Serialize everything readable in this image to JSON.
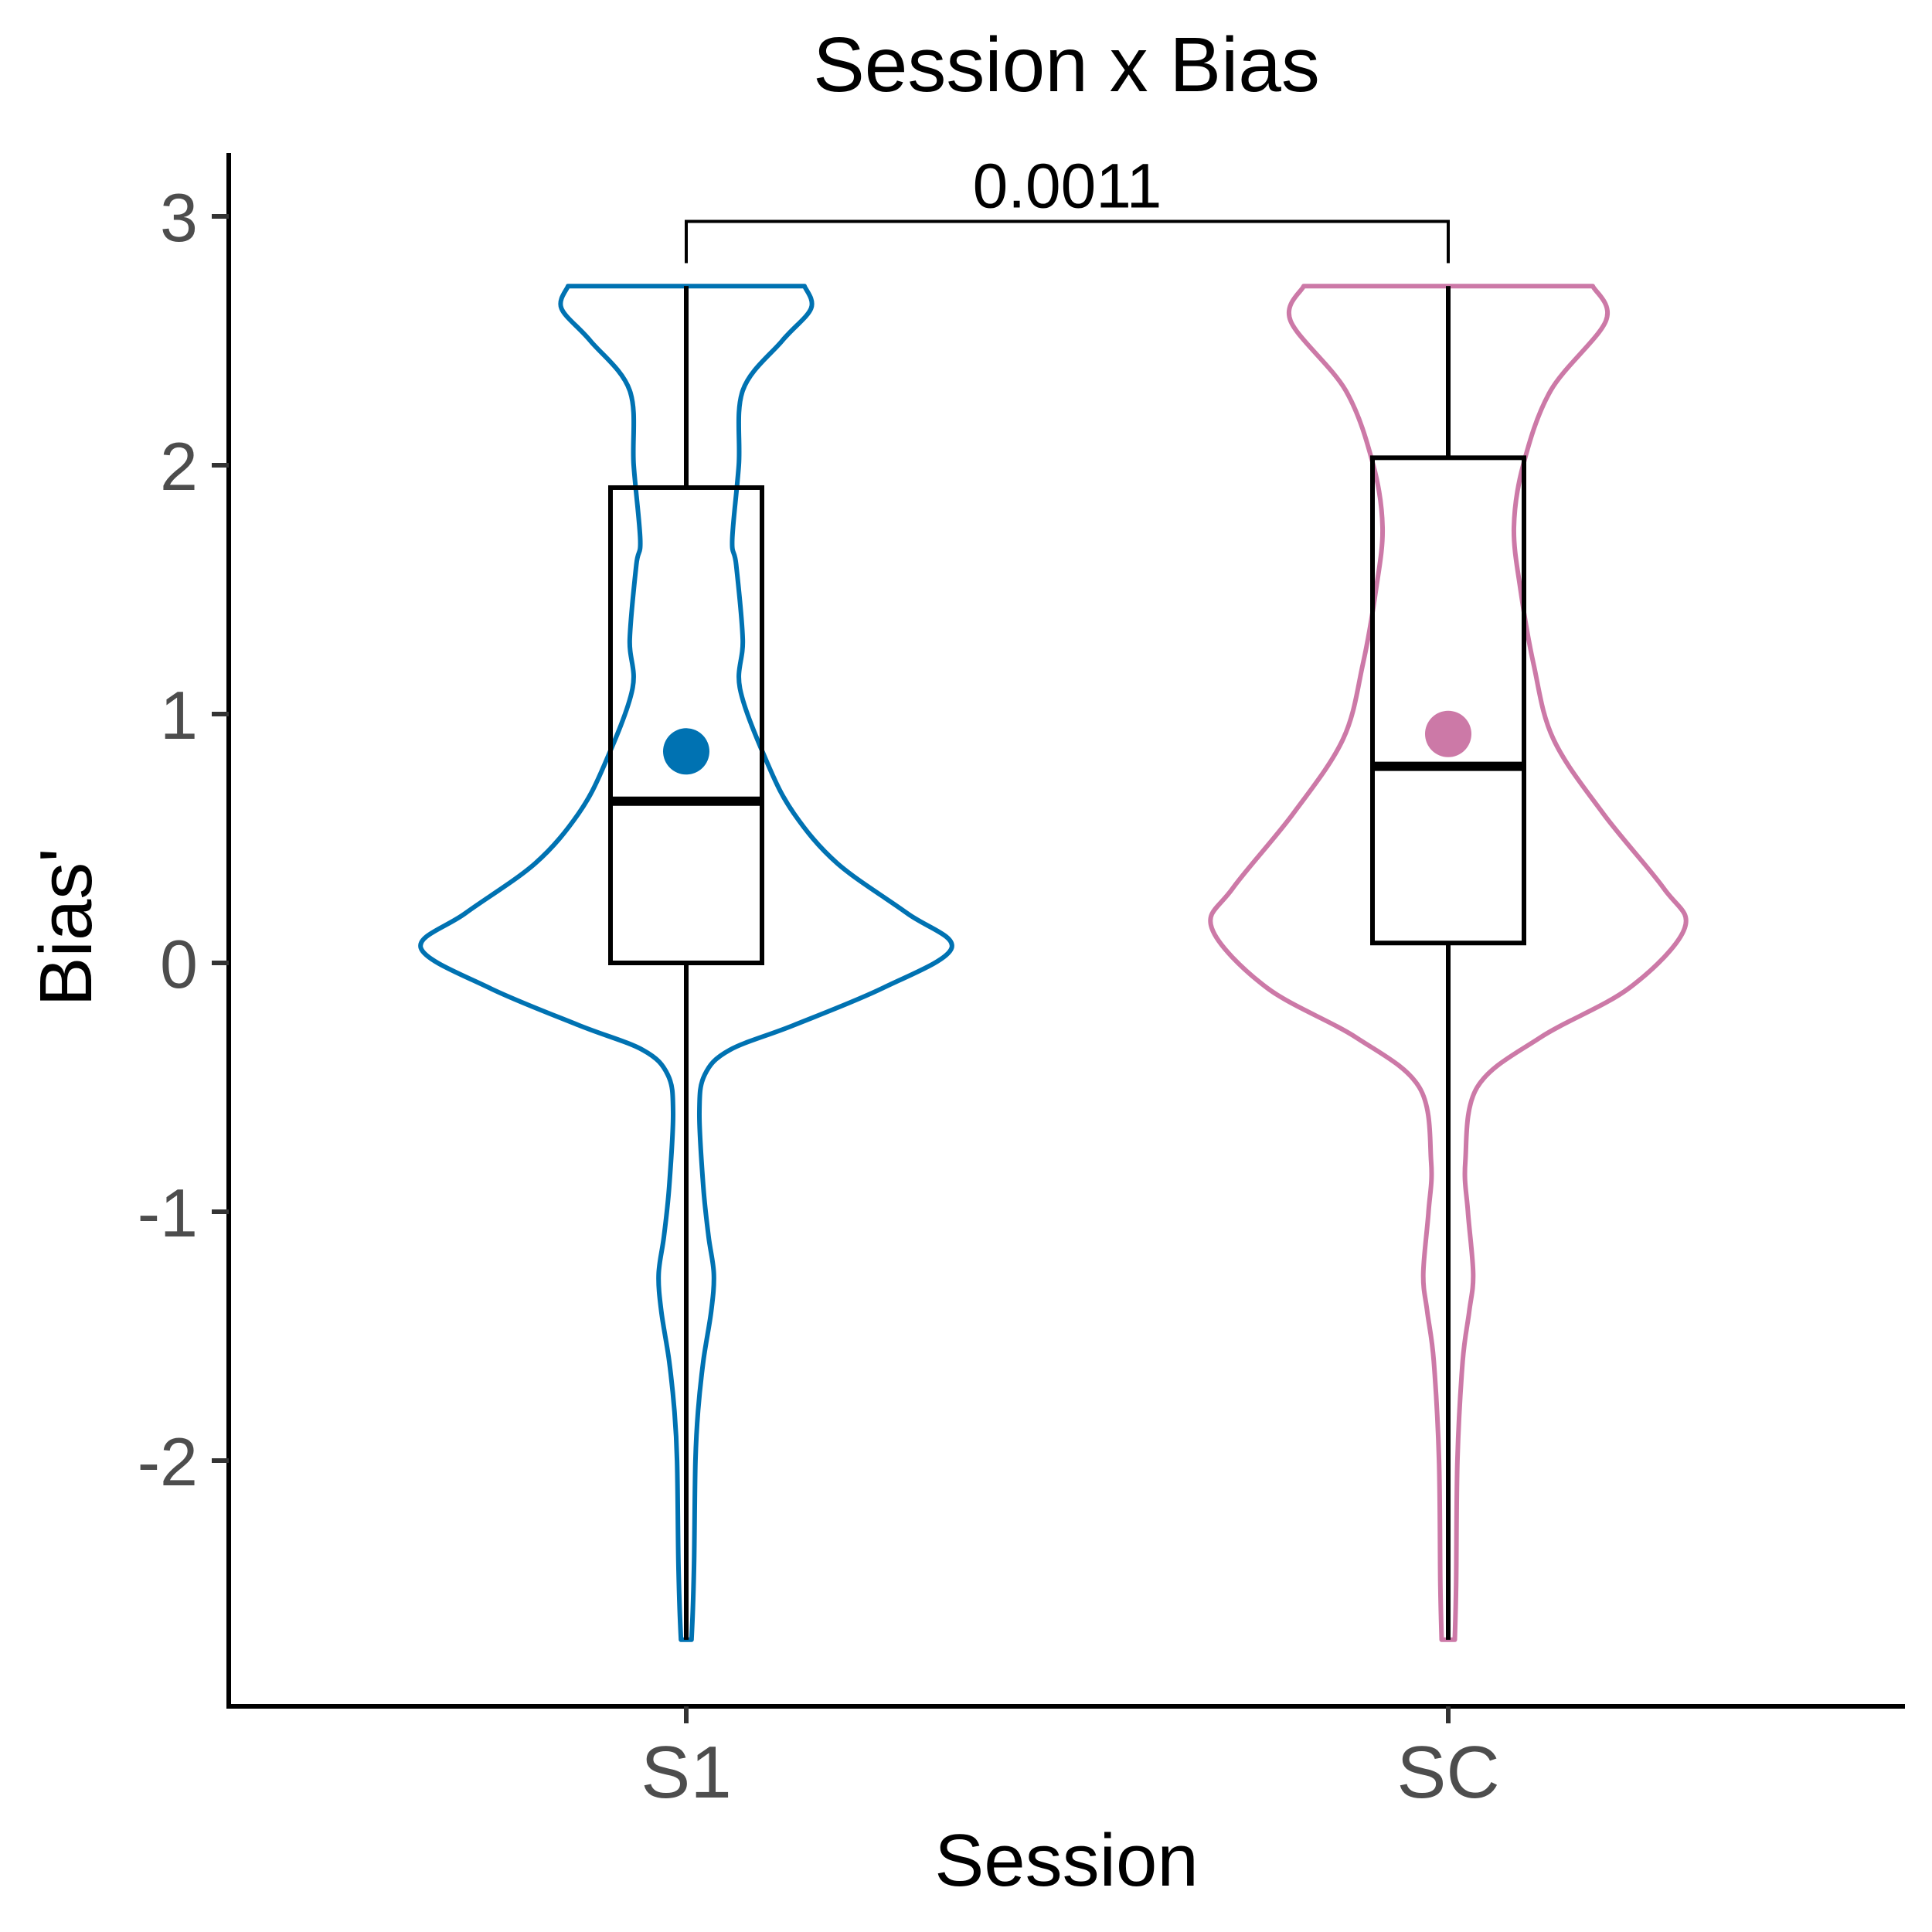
{
  "chart_data": {
    "type": "violin",
    "title": "Session x Bias",
    "xlabel": "Session",
    "ylabel": "Bias'",
    "categories": [
      "S1",
      "SC"
    ],
    "ylim": [
      -2.98,
      3.25
    ],
    "y_ticks": [
      3,
      2,
      1,
      0,
      -1,
      -2
    ],
    "y_tick_labels": [
      "3",
      "2",
      "1",
      "0",
      "-1",
      "-2"
    ],
    "grid": false,
    "legend": "none",
    "comparison": {
      "groups": [
        "S1",
        "SC"
      ],
      "label": "0.0011",
      "bracket_y": 2.98
    },
    "series": [
      {
        "category": "S1",
        "color": "#0072B2",
        "mean": 0.85,
        "box": {
          "whisker_low": -2.72,
          "q1": 0.0,
          "median": 0.65,
          "q3": 1.91,
          "whisker_high": 2.72
        },
        "violin_halfwidth": [
          [
            -2.72,
            0.04
          ],
          [
            -2.6,
            0.05
          ],
          [
            -2.4,
            0.06
          ],
          [
            -2.0,
            0.07
          ],
          [
            -1.8,
            0.09
          ],
          [
            -1.6,
            0.13
          ],
          [
            -1.4,
            0.19
          ],
          [
            -1.25,
            0.21
          ],
          [
            -1.1,
            0.17
          ],
          [
            -0.9,
            0.13
          ],
          [
            -0.6,
            0.1
          ],
          [
            -0.45,
            0.14
          ],
          [
            -0.35,
            0.33
          ],
          [
            -0.25,
            0.82
          ],
          [
            -0.1,
            1.5
          ],
          [
            0.06,
            2.02
          ],
          [
            0.2,
            1.68
          ],
          [
            0.4,
            1.15
          ],
          [
            0.6,
            0.82
          ],
          [
            0.8,
            0.62
          ],
          [
            1.1,
            0.41
          ],
          [
            1.3,
            0.43
          ],
          [
            1.6,
            0.38
          ],
          [
            1.7,
            0.35
          ],
          [
            2.0,
            0.4
          ],
          [
            2.3,
            0.43
          ],
          [
            2.5,
            0.73
          ],
          [
            2.63,
            0.95
          ],
          [
            2.72,
            0.9
          ]
        ]
      },
      {
        "category": "SC",
        "color": "#CC79A7",
        "mean": 0.92,
        "box": {
          "whisker_low": -2.72,
          "q1": 0.08,
          "median": 0.79,
          "q3": 2.03,
          "whisker_high": 2.72
        },
        "violin_halfwidth": [
          [
            -2.72,
            0.05
          ],
          [
            -2.5,
            0.06
          ],
          [
            -2.0,
            0.07
          ],
          [
            -1.6,
            0.11
          ],
          [
            -1.4,
            0.16
          ],
          [
            -1.25,
            0.19
          ],
          [
            -1.0,
            0.15
          ],
          [
            -0.8,
            0.13
          ],
          [
            -0.5,
            0.22
          ],
          [
            -0.3,
            0.7
          ],
          [
            -0.1,
            1.38
          ],
          [
            0.14,
            1.8
          ],
          [
            0.3,
            1.64
          ],
          [
            0.6,
            1.18
          ],
          [
            0.9,
            0.8
          ],
          [
            1.2,
            0.65
          ],
          [
            1.5,
            0.55
          ],
          [
            1.75,
            0.5
          ],
          [
            2.0,
            0.57
          ],
          [
            2.3,
            0.78
          ],
          [
            2.58,
            1.2
          ],
          [
            2.72,
            1.1
          ]
        ]
      }
    ]
  }
}
